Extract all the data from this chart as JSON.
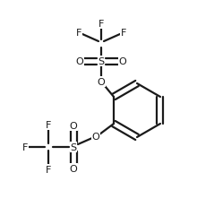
{
  "background_color": "#ffffff",
  "line_color": "#1a1a1a",
  "line_width": 1.6,
  "font_size": 8.0,
  "figsize": [
    2.2,
    2.32
  ],
  "dpi": 100,
  "xlim": [
    0,
    220
  ],
  "ylim": [
    0,
    232
  ]
}
